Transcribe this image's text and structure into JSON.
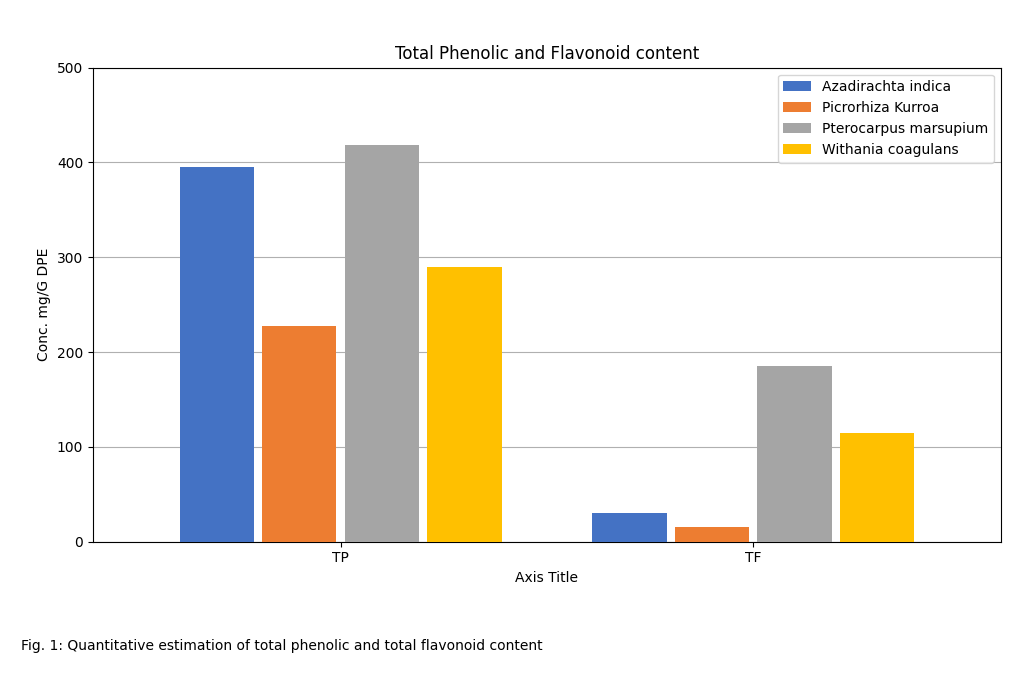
{
  "chart_data": {
    "type": "bar",
    "title": "Total Phenolic and Flavonoid content",
    "xlabel": "Axis Title",
    "ylabel": "Conc. mg/G DPE",
    "categories": [
      "TP",
      "TF"
    ],
    "series": [
      {
        "name": "Azadirachta indica",
        "color": "#4472C4",
        "values": [
          395,
          30
        ]
      },
      {
        "name": "Picrorhiza Kurroa",
        "color": "#ED7D31",
        "values": [
          228,
          15
        ]
      },
      {
        "name": "Pterocarpus marsupium",
        "color": "#A5A5A5",
        "values": [
          418,
          185
        ]
      },
      {
        "name": "Withania coagulans",
        "color": "#FFC000",
        "values": [
          290,
          115
        ]
      }
    ],
    "ylim": [
      0,
      500
    ],
    "yticks": [
      0,
      100,
      200,
      300,
      400,
      500
    ],
    "grid": true,
    "legend": "upper right",
    "annotations": [
      "Fig. 1: Quantitative estimation of total phenolic and total flavonoid content"
    ]
  }
}
